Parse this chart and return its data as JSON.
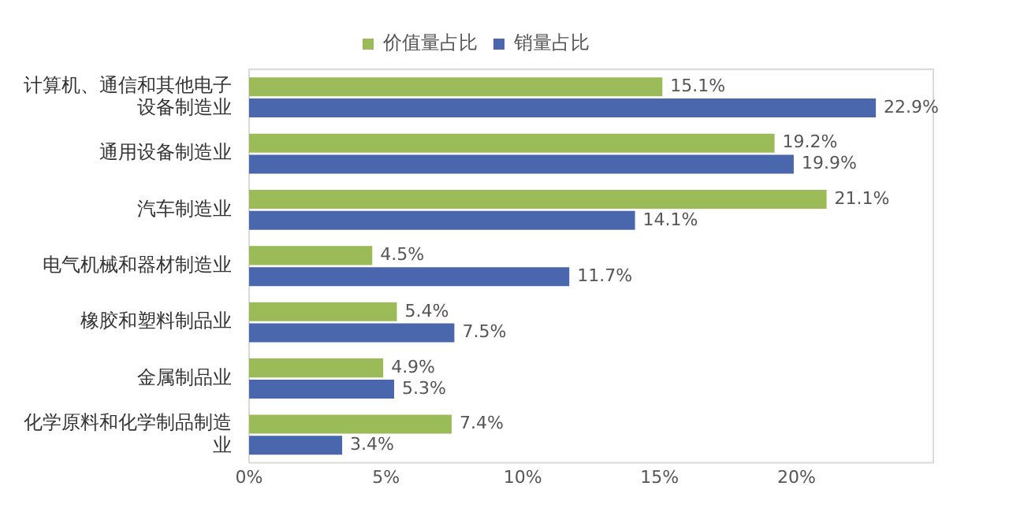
{
  "chart_data": {
    "type": "bar",
    "orientation": "horizontal",
    "categories": [
      "计算机、通信和其他电子设备制造业",
      "通用设备制造业",
      "汽车制造业",
      "电气机械和器材制造业",
      "橡胶和塑料制品业",
      "金属制品业",
      "化学原料和化学制品制造业"
    ],
    "series": [
      {
        "name": "价值量占比",
        "color": "#9bbb59",
        "values": [
          15.1,
          19.2,
          21.1,
          4.5,
          5.4,
          4.9,
          7.4
        ],
        "value_labels": [
          "15.1%",
          "19.2%",
          "21.1%",
          "4.5%",
          "5.4%",
          "4.9%",
          "7.4%"
        ]
      },
      {
        "name": "销量占比",
        "color": "#4a66ac",
        "values": [
          22.9,
          19.9,
          14.1,
          11.7,
          7.5,
          5.3,
          3.4
        ],
        "value_labels": [
          "22.9%",
          "19.9%",
          "14.1%",
          "11.7%",
          "7.5%",
          "5.3%",
          "3.4%"
        ]
      }
    ],
    "xlim": [
      0,
      25
    ],
    "xticks": [
      {
        "value": 0,
        "label": "0%"
      },
      {
        "value": 5,
        "label": "5%"
      },
      {
        "value": 10,
        "label": "10%"
      },
      {
        "value": 15,
        "label": "15%"
      },
      {
        "value": 20,
        "label": "20%"
      }
    ],
    "grid": false,
    "legend": "top"
  }
}
